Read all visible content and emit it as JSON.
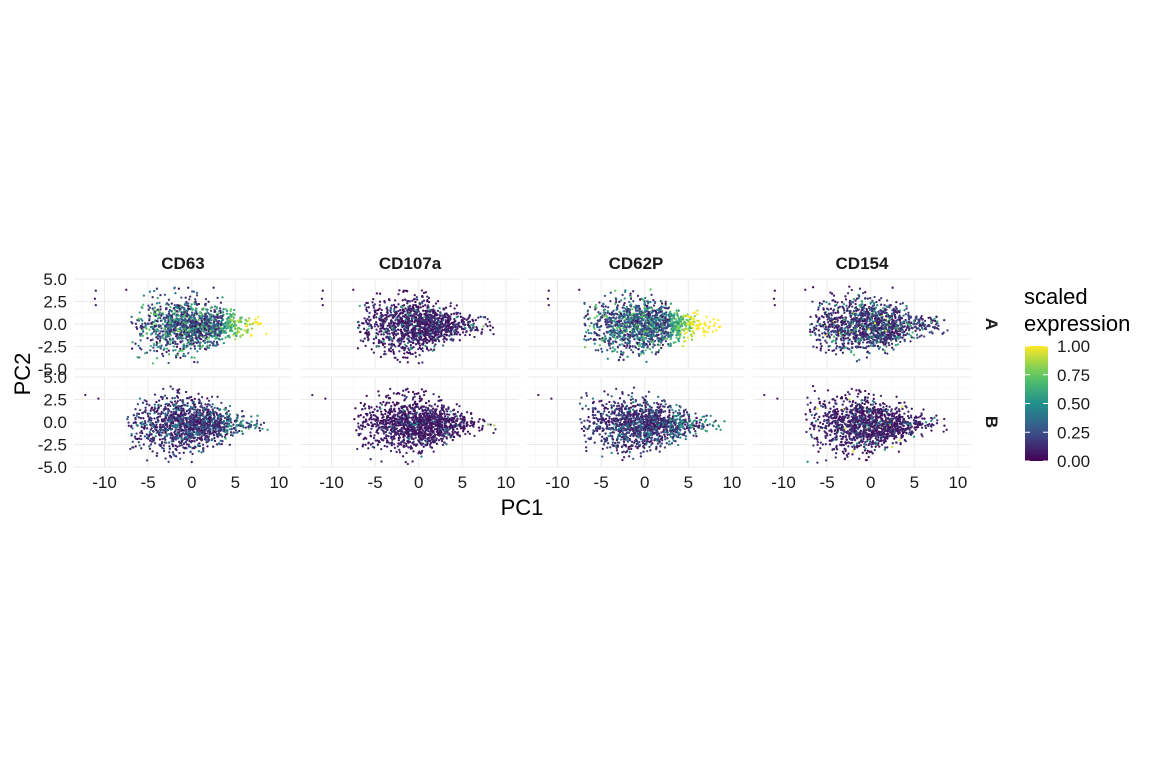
{
  "chart_data": {
    "type": "scatter",
    "title": "",
    "xlabel": "PC1",
    "ylabel": "PC2",
    "facet_columns": [
      "CD63",
      "CD107a",
      "CD62P",
      "CD154"
    ],
    "facet_rows": [
      "A",
      "B"
    ],
    "xlim": [
      -13.5,
      11.5
    ],
    "ylim": [
      -5.0,
      5.0
    ],
    "x_ticks": [
      -10,
      -5,
      0,
      5,
      10
    ],
    "x_tick_labels": [
      "-10",
      "-5",
      "0",
      "5",
      "10"
    ],
    "y_ticks": [
      -5.0,
      -2.5,
      0.0,
      2.5,
      5.0
    ],
    "y_tick_labels": [
      "-5.0",
      "-2.5",
      "0.0",
      "2.5",
      "5.0"
    ],
    "grid": true,
    "color_scale": {
      "title_lines": [
        "scaled",
        "expression"
      ],
      "min": 0.0,
      "max": 1.0,
      "breaks": [
        1.0,
        0.75,
        0.5,
        0.25,
        0.0
      ],
      "break_labels": [
        "1.00",
        "0.75",
        "0.50",
        "0.25",
        "0.00"
      ],
      "palette": [
        "#440154",
        "#3b528b",
        "#21908c",
        "#5dc963",
        "#fde725"
      ],
      "legend_position": "right"
    },
    "cloud_A": {
      "x_range": [
        -7.0,
        9.0
      ],
      "y_range": [
        -4.5,
        4.2
      ],
      "outliers": [
        [
          -11.0,
          3.7
        ],
        [
          -11.1,
          2.8
        ],
        [
          -11.0,
          2.1
        ],
        [
          -7.5,
          3.8
        ]
      ]
    },
    "cloud_B": {
      "x_range": [
        -7.5,
        9.5
      ],
      "y_range": [
        -5.0,
        4.5
      ],
      "outliers": [
        [
          -12.2,
          3.0
        ],
        [
          -10.7,
          2.6
        ]
      ]
    },
    "expression_profile": {
      "CD63": {
        "A": "high on right (PC1 > 4), mixed elsewhere",
        "B": "mostly low, moderate on right"
      },
      "CD107a": {
        "A": "mostly low",
        "B": "mostly low"
      },
      "CD62P": {
        "A": "high on right (PC1 > 3), mixed elsewhere",
        "B": "mostly low, moderate on right"
      },
      "CD154": {
        "A": "mostly low with scattered moderate",
        "B": "mostly low"
      }
    }
  }
}
